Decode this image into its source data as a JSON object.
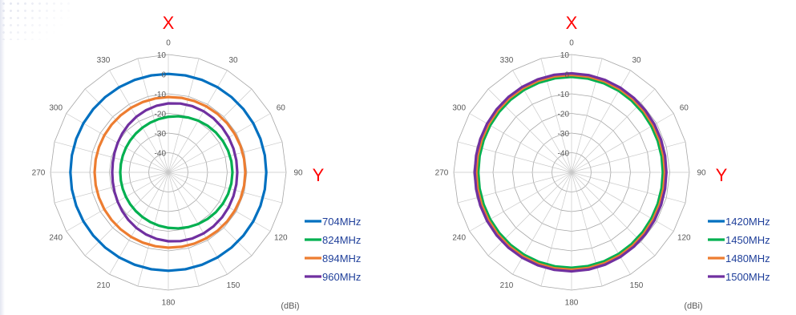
{
  "chart_data": [
    {
      "type": "polar",
      "x_letter": "X",
      "y_letter": "Y",
      "unit_label": "(dBi)",
      "angles": [
        0,
        30,
        60,
        90,
        120,
        150,
        180,
        210,
        240,
        270,
        300,
        330
      ],
      "radial_ticks": [
        10,
        0,
        -10,
        -20,
        -30,
        -40
      ],
      "rlim": [
        -50,
        10
      ],
      "grid": true,
      "legend_position": "bottom-right",
      "series": [
        {
          "name": "704MHz",
          "color": "#0070c0",
          "r_mode": "circle",
          "level": 0
        },
        {
          "name": "824MHz",
          "color": "#00b050",
          "r_mode": "offset",
          "amp": 1.0
        },
        {
          "name": "894MHz",
          "color": "#ed7d31",
          "r_mode": "offset",
          "amp": 0.85
        },
        {
          "name": "960MHz",
          "color": "#7030a0",
          "r_mode": "offset",
          "amp": 0.55
        }
      ]
    },
    {
      "type": "polar",
      "x_letter": "X",
      "y_letter": "Y",
      "unit_label": "(dBi)",
      "angles": [
        0,
        30,
        60,
        90,
        120,
        150,
        180,
        210,
        240,
        270,
        300,
        330
      ],
      "radial_ticks": [
        10,
        0,
        -10,
        -20,
        -30,
        -40
      ],
      "rlim": [
        -50,
        10
      ],
      "grid": true,
      "legend_position": "bottom-right",
      "series": [
        {
          "name": "1420MHz",
          "color": "#0070c0",
          "r_mode": "near",
          "level": -1.5
        },
        {
          "name": "1450MHz",
          "color": "#00b050",
          "r_mode": "near",
          "level": -2.2
        },
        {
          "name": "1480MHz",
          "color": "#ed7d31",
          "r_mode": "near",
          "level": -1.2
        },
        {
          "name": "1500MHz",
          "color": "#7030a0",
          "r_mode": "near",
          "level": -0.4
        }
      ]
    }
  ]
}
